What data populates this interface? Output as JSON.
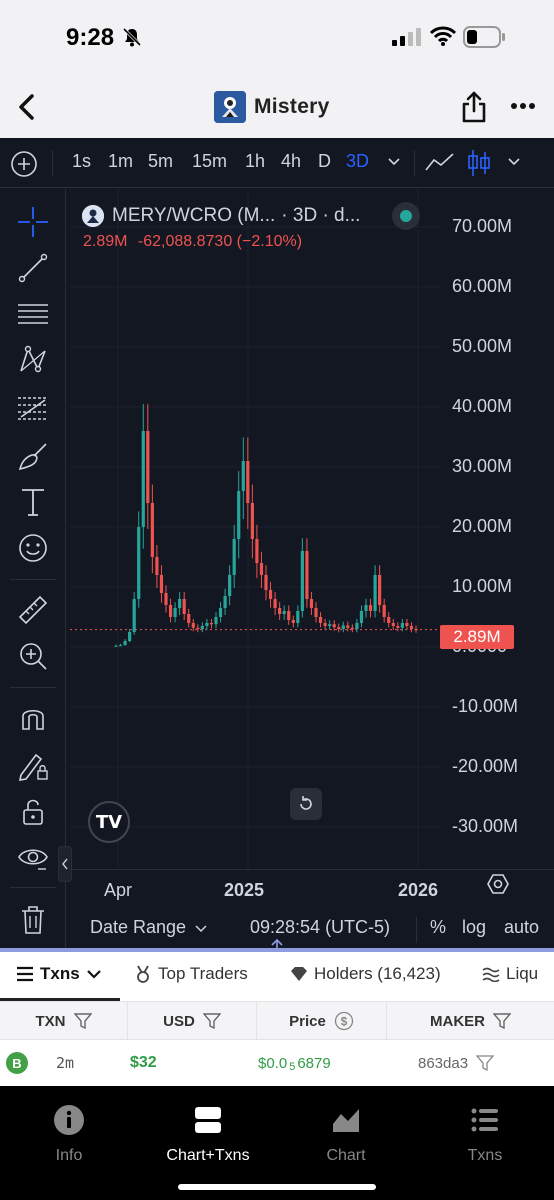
{
  "status_bar": {
    "time": "9:28"
  },
  "nav": {
    "title": "Mistery"
  },
  "toolbar": {
    "timeframes": [
      "1s",
      "1m",
      "5m",
      "15m",
      "1h",
      "4h",
      "D",
      "3D"
    ],
    "active_timeframe": "3D"
  },
  "legend": {
    "symbol": "MERY/WCRO (M...",
    "interval": "· 3D · d...",
    "price": "2.89M",
    "change": "-62,088.8730 (−2.10%)"
  },
  "y_axis": [
    "70.00M",
    "60.00M",
    "50.00M",
    "40.00M",
    "30.00M",
    "20.00M",
    "10.00M",
    "0.0000",
    "-10.00M",
    "-20.00M",
    "-30.00M"
  ],
  "x_axis": [
    "Apr",
    "2025",
    "2026"
  ],
  "current_price_label": "2.89M",
  "bottom_bar": {
    "date_range": "Date Range",
    "time": "09:28:54 (UTC-5)",
    "percent": "%",
    "log": "log",
    "auto": "auto"
  },
  "tabs": [
    {
      "label": "Txns"
    },
    {
      "label": "Top Traders"
    },
    {
      "label": "Holders (16,423)"
    },
    {
      "label": "Liqu"
    }
  ],
  "table": {
    "headers": [
      "TXN",
      "USD",
      "Price",
      "MAKER"
    ],
    "rows": [
      {
        "type": "B",
        "age": "2m",
        "usd": "$32",
        "price_prefix": "$0.0",
        "price_sub": "5",
        "price_rest": "6879",
        "maker": "863da3"
      }
    ]
  },
  "tab_bar": {
    "items": [
      {
        "label": "Info"
      },
      {
        "label": "Chart+Txns"
      },
      {
        "label": "Chart"
      },
      {
        "label": "Txns"
      }
    ],
    "active": "Chart+Txns"
  },
  "colors": {
    "chart_bg": "#131722",
    "up": "#26a69a",
    "down": "#ef5350",
    "accent": "#2962ff",
    "buy": "#43a047"
  },
  "chart_data": {
    "type": "candlestick",
    "ylim": [
      -35000000,
      75000000
    ],
    "series_close": [
      0.2,
      0.3,
      1.0,
      2.5,
      8.0,
      20.0,
      36.0,
      24.0,
      15.0,
      12.0,
      9.0,
      7.0,
      5.0,
      6.5,
      8.0,
      5.5,
      4.0,
      3.2,
      3.0,
      3.5,
      4.0,
      3.8,
      5.0,
      6.5,
      8.5,
      12.0,
      18.0,
      26.0,
      31.0,
      24.0,
      18.0,
      14.0,
      12.0,
      9.5,
      8.0,
      6.5,
      5.5,
      6.0,
      4.5,
      4.0,
      6.0,
      16.0,
      8.0,
      6.5,
      5.0,
      4.0,
      3.5,
      3.8,
      3.3,
      3.0,
      3.6,
      3.2,
      3.0,
      4.0,
      6.0,
      7.0,
      6.0,
      12.0,
      7.0,
      5.0,
      4.0,
      3.5,
      3.2,
      4.0,
      3.5,
      3.0,
      2.89
    ],
    "last_price": 2890000
  }
}
